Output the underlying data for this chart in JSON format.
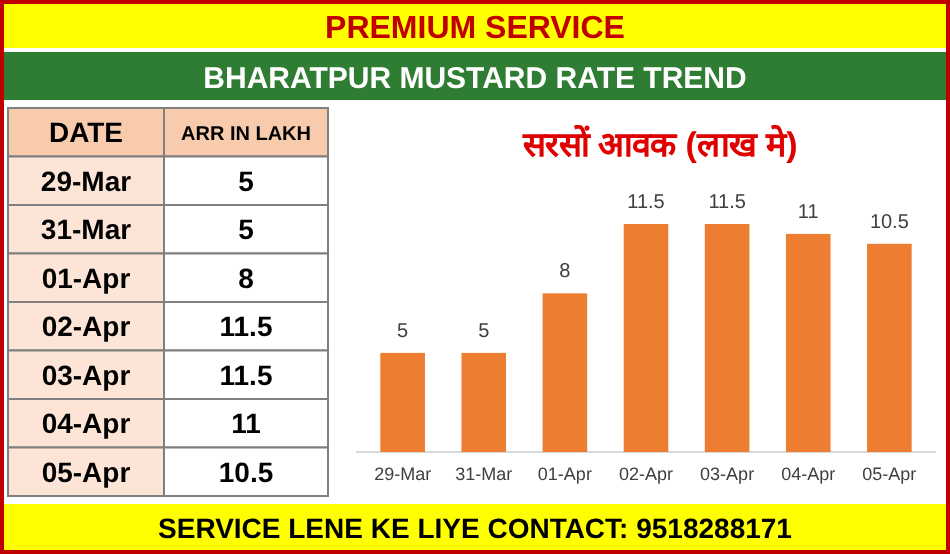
{
  "chart_data": [
    {
      "type": "other",
      "xlabel": "DATE",
      "ylabel": "ARR IN LAKH",
      "subtitle": "BHARATPUR MUSTARD RATE TREND",
      "categories": [
        "29-Mar",
        "31-Mar",
        "01-Apr",
        "02-Apr",
        "03-Apr",
        "04-Apr",
        "05-Apr"
      ],
      "values": [
        5,
        5,
        8,
        11.5,
        11.5,
        11,
        10.5
      ],
      "data_labels": true,
      "annotations": [
        "PREMIUM SERVICE",
        "SERVICE LENE KE LIYE CONTACT: 9518288171"
      ]
    },
    {
      "type": "bar",
      "title": "सरसों आवक (लाख मे)",
      "categories": [
        "29-Mar",
        "31-Mar",
        "01-Apr",
        "02-Apr",
        "03-Apr",
        "04-Apr",
        "05-Apr"
      ],
      "values": [
        5,
        5,
        8,
        11.5,
        11.5,
        11,
        10.5
      ],
      "color": "#ed7d31",
      "data_labels": true
    }
  ]
}
